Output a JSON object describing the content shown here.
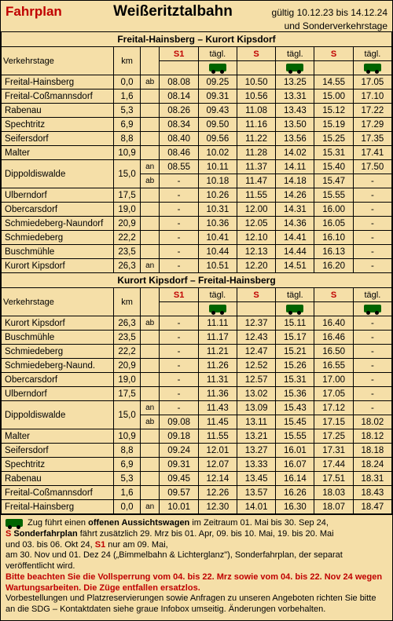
{
  "header": {
    "left": "Fahrplan",
    "center": "Weißeritztalbahn",
    "right1": "gültig 10.12.23 bis 14.12.24",
    "right2": "und Sonderverkehrstage"
  },
  "columns": {
    "verkehrstage": "Verkehrstage",
    "km": "km",
    "s1": "S1",
    "tagl": "tägl.",
    "s": "S"
  },
  "dir1": {
    "title": "Freital-Hainsberg – Kurort Kipsdorf",
    "rows": [
      {
        "station": "Freital-Hainsberg",
        "km": "0,0",
        "anab": "ab",
        "t": [
          "08.08",
          "09.25",
          "10.50",
          "13.25",
          "14.55",
          "17.05"
        ]
      },
      {
        "station": "Freital-Coßmannsdorf",
        "km": "1,6",
        "anab": "",
        "t": [
          "08.14",
          "09.31",
          "10.56",
          "13.31",
          "15.00",
          "17.10"
        ]
      },
      {
        "station": "Rabenau",
        "km": "5,3",
        "anab": "",
        "t": [
          "08.26",
          "09.43",
          "11.08",
          "13.43",
          "15.12",
          "17.22"
        ]
      },
      {
        "station": "Spechtritz",
        "km": "6,9",
        "anab": "",
        "t": [
          "08.34",
          "09.50",
          "11.16",
          "13.50",
          "15.19",
          "17.29"
        ]
      },
      {
        "station": "Seifersdorf",
        "km": "8,8",
        "anab": "",
        "t": [
          "08.40",
          "09.56",
          "11.22",
          "13.56",
          "15.25",
          "17.35"
        ]
      },
      {
        "station": "Malter",
        "km": "10,9",
        "anab": "",
        "t": [
          "08.46",
          "10.02",
          "11.28",
          "14.02",
          "15.31",
          "17.41"
        ]
      }
    ],
    "dippoldiswalde": {
      "station": "Dippoldiswalde",
      "km": "15,0",
      "an": [
        "08.55",
        "10.11",
        "11.37",
        "14.11",
        "15.40",
        "17.50"
      ],
      "ab": [
        "-",
        "10.18",
        "11.47",
        "14.18",
        "15.47",
        "-"
      ]
    },
    "rows2": [
      {
        "station": "Ulberndorf",
        "km": "17,5",
        "anab": "",
        "t": [
          "-",
          "10.26",
          "11.55",
          "14.26",
          "15.55",
          "-"
        ]
      },
      {
        "station": "Obercarsdorf",
        "km": "19,0",
        "anab": "",
        "t": [
          "-",
          "10.31",
          "12.00",
          "14.31",
          "16.00",
          "-"
        ]
      },
      {
        "station": "Schmiedeberg-Naundorf",
        "km": "20,9",
        "anab": "",
        "t": [
          "-",
          "10.36",
          "12.05",
          "14.36",
          "16.05",
          "-"
        ]
      },
      {
        "station": "Schmiedeberg",
        "km": "22,2",
        "anab": "",
        "t": [
          "-",
          "10.41",
          "12.10",
          "14.41",
          "16.10",
          "-"
        ]
      },
      {
        "station": "Buschmühle",
        "km": "23,5",
        "anab": "",
        "t": [
          "-",
          "10.44",
          "12.13",
          "14.44",
          "16.13",
          "-"
        ]
      },
      {
        "station": "Kurort Kipsdorf",
        "km": "26,3",
        "anab": "an",
        "t": [
          "-",
          "10.51",
          "12.20",
          "14.51",
          "16.20",
          "-"
        ]
      }
    ]
  },
  "dir2": {
    "title": "Kurort Kipsdorf – Freital-Hainsberg",
    "rows": [
      {
        "station": "Kurort Kipsdorf",
        "km": "26,3",
        "anab": "ab",
        "t": [
          "-",
          "11.11",
          "12.37",
          "15.11",
          "16.40",
          "-"
        ]
      },
      {
        "station": "Buschmühle",
        "km": "23,5",
        "anab": "",
        "t": [
          "-",
          "11.17",
          "12.43",
          "15.17",
          "16.46",
          "-"
        ]
      },
      {
        "station": "Schmiedeberg",
        "km": "22,2",
        "anab": "",
        "t": [
          "-",
          "11.21",
          "12.47",
          "15.21",
          "16.50",
          "-"
        ]
      },
      {
        "station": "Schmiedeberg-Naund.",
        "km": "20,9",
        "anab": "",
        "t": [
          "-",
          "11.26",
          "12.52",
          "15.26",
          "16.55",
          "-"
        ]
      },
      {
        "station": "Obercarsdorf",
        "km": "19,0",
        "anab": "",
        "t": [
          "-",
          "11.31",
          "12.57",
          "15.31",
          "17.00",
          "-"
        ]
      },
      {
        "station": "Ulberndorf",
        "km": "17,5",
        "anab": "",
        "t": [
          "-",
          "11.36",
          "13.02",
          "15.36",
          "17.05",
          "-"
        ]
      }
    ],
    "dippoldiswalde": {
      "station": "Dippoldiswalde",
      "km": "15,0",
      "an": [
        "-",
        "11.43",
        "13.09",
        "15.43",
        "17.12",
        "-"
      ],
      "ab": [
        "09.08",
        "11.45",
        "13.11",
        "15.45",
        "17.15",
        "18.02"
      ]
    },
    "rows2": [
      {
        "station": "Malter",
        "km": "10,9",
        "anab": "",
        "t": [
          "09.18",
          "11.55",
          "13.21",
          "15.55",
          "17.25",
          "18.12"
        ]
      },
      {
        "station": "Seifersdorf",
        "km": "8,8",
        "anab": "",
        "t": [
          "09.24",
          "12.01",
          "13.27",
          "16.01",
          "17.31",
          "18.18"
        ]
      },
      {
        "station": "Spechtritz",
        "km": "6,9",
        "anab": "",
        "t": [
          "09.31",
          "12.07",
          "13.33",
          "16.07",
          "17.44",
          "18.24"
        ]
      },
      {
        "station": "Rabenau",
        "km": "5,3",
        "anab": "",
        "t": [
          "09.45",
          "12.14",
          "13.45",
          "16.14",
          "17.51",
          "18.31"
        ]
      },
      {
        "station": "Freital-Coßmannsdorf",
        "km": "1,6",
        "anab": "",
        "t": [
          "09.57",
          "12.26",
          "13.57",
          "16.26",
          "18.03",
          "18.43"
        ]
      },
      {
        "station": "Freital-Hainsberg",
        "km": "0,0",
        "anab": "an",
        "t": [
          "10.01",
          "12.30",
          "14.01",
          "16.30",
          "18.07",
          "18.47"
        ]
      }
    ]
  },
  "notes": {
    "l1a": " Zug führt einen ",
    "l1b": "offenen Aussichtswagen",
    "l1c": " im Zeitraum 01. Mai bis 30. Sep 24,",
    "l2a": "S",
    "l2b": " Sonderfahrplan",
    "l2c": " fährt zusätzlich 29. Mrz bis 01. Apr, 09. bis 10. Mai, 19. bis 20. Mai",
    "l3": "und 03. bis 06. Okt 24, ",
    "l3b": "S1",
    "l3c": " nur am 09. Mai,",
    "l4": "am 30. Nov und 01. Dez 24 („Bimmelbahn & Lichterglanz\"), Sonderfahrplan, der separat veröffentlicht wird.",
    "l5": "Bitte beachten Sie die Vollsperrung vom 04. bis 22. Mrz sowie vom 04. bis 22. Nov 24 wegen Wartungsarbeiten. Die Züge entfallen ersatzlos.",
    "l6": "Vorbestellungen und Platzreservierungen sowie Anfragen zu unseren Angeboten richten Sie bitte an die SDG – Kontaktdaten siehe graue Infobox umseitig. Änderungen vorbehalten."
  }
}
